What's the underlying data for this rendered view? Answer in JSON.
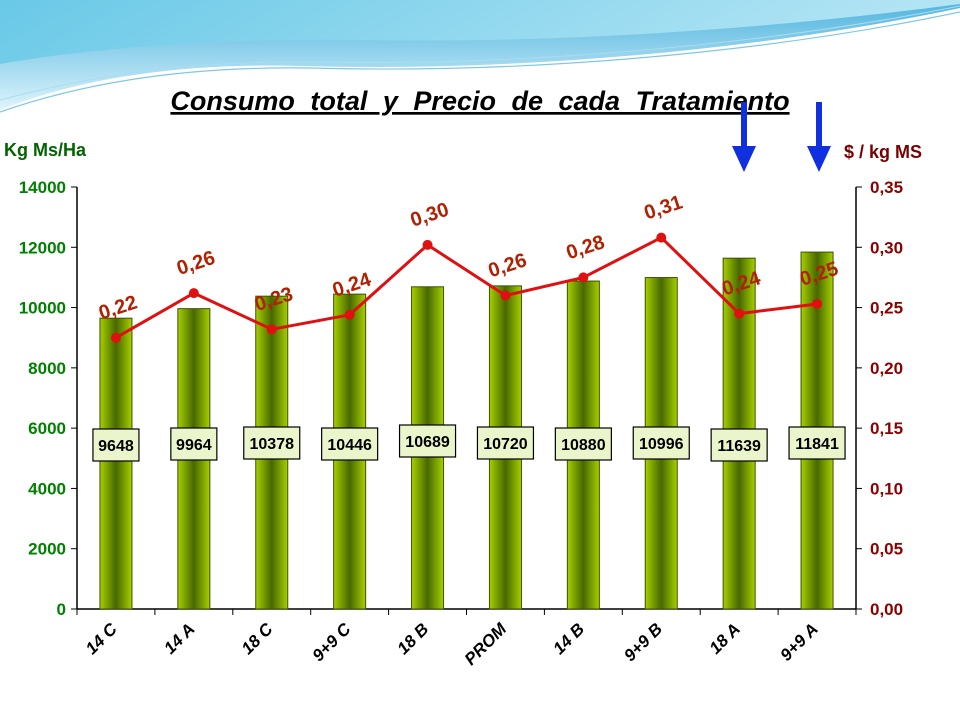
{
  "colors": {
    "bar_light": "#b8e000",
    "bar_dark": "#4a6a00",
    "line": "#e01010",
    "left_axis": "#008000",
    "right_axis": "#8b0000",
    "arrow": "#1030e0",
    "label_fill": "#eaf5cc"
  },
  "chart_data": {
    "type": "bar",
    "title": "Consumo total y Precio de cada Tratamiento",
    "ylabel_left": "Kg Ms/Ha",
    "ylabel_right": "$ / kg MS",
    "ylim_left": [
      0,
      14000
    ],
    "ylim_right": [
      0,
      0.35
    ],
    "yticks_left": [
      "0",
      "2000",
      "4000",
      "6000",
      "8000",
      "10000",
      "12000",
      "14000"
    ],
    "yticks_right": [
      "0,00",
      "0,05",
      "0,10",
      "0,15",
      "0,20",
      "0,25",
      "0,30",
      "0,35"
    ],
    "categories": [
      "14 C",
      "14 A",
      "18 C",
      "9+9 C",
      "18 B",
      "PROM",
      "14 B",
      "9+9 B",
      "18 A",
      "9+9 A"
    ],
    "series": [
      {
        "type": "bar",
        "axis": "left",
        "values": [
          9648,
          9964,
          10378,
          10446,
          10689,
          10720,
          10880,
          10996,
          11639,
          11841
        ],
        "labels": [
          "9648",
          "9964",
          "10378",
          "10446",
          "10689",
          "10720",
          "10880",
          "10996",
          "11639",
          "11841"
        ]
      },
      {
        "type": "line",
        "axis": "right",
        "values": [
          0.225,
          0.262,
          0.232,
          0.244,
          0.302,
          0.26,
          0.275,
          0.308,
          0.245,
          0.253
        ],
        "labels": [
          "0,22",
          "0,26",
          "0,23",
          "0,24",
          "0,30",
          "0,26",
          "0,28",
          "0,31",
          "0,24",
          "0,25"
        ]
      }
    ],
    "highlighted_categories": [
      "18 A",
      "9+9 A"
    ],
    "grid": false
  }
}
